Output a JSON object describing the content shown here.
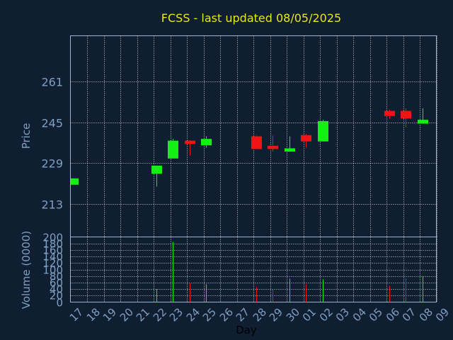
{
  "chart_data": {
    "type": "candlestick",
    "title": "FCSS - last updated 08/05/2025",
    "xlabel": "Day",
    "price_panel": {
      "ylabel": "Price",
      "y_ticks": [
        "261",
        "245",
        "229",
        "213"
      ],
      "ylim": [
        200,
        279
      ]
    },
    "volume_panel": {
      "ylabel": "Volume (0000)",
      "y_ticks": [
        "200",
        "180",
        "160",
        "140",
        "120",
        "100",
        "80",
        "60",
        "40",
        "20",
        "0"
      ],
      "ylim": [
        0,
        200
      ]
    },
    "x_ticks": [
      "17",
      "18",
      "19",
      "20",
      "21",
      "22",
      "23",
      "24",
      "25",
      "26",
      "27",
      "28",
      "29",
      "30",
      "01",
      "02",
      "03",
      "04",
      "05",
      "06",
      "07",
      "08",
      "09"
    ],
    "candles": [
      {
        "day": "17",
        "open": 220.5,
        "close": 223.0,
        "high": 223.0,
        "low": 220.5,
        "volume": 0
      },
      {
        "day": "22",
        "open": 224.8,
        "close": 228.0,
        "high": 228.0,
        "low": 219.8,
        "volume": 40
      },
      {
        "day": "23",
        "open": 230.8,
        "close": 237.8,
        "high": 238.5,
        "low": 230.8,
        "volume": 185
      },
      {
        "day": "24",
        "open": 237.8,
        "close": 236.5,
        "high": 238.0,
        "low": 232.0,
        "volume": 60
      },
      {
        "day": "25",
        "open": 236.0,
        "close": 238.5,
        "high": 239.5,
        "low": 235.0,
        "volume": 55
      },
      {
        "day": "28",
        "open": 239.5,
        "close": 234.5,
        "high": 239.8,
        "low": 234.5,
        "volume": 45
      },
      {
        "day": "29",
        "open": 235.8,
        "close": 234.5,
        "high": 239.8,
        "low": 233.5,
        "volume": 38
      },
      {
        "day": "30",
        "open": 233.5,
        "close": 234.8,
        "high": 239.5,
        "low": 233.5,
        "volume": 72
      },
      {
        "day": "01",
        "open": 240.0,
        "close": 237.5,
        "high": 240.5,
        "low": 235.0,
        "volume": 55
      },
      {
        "day": "02",
        "open": 237.5,
        "close": 245.5,
        "high": 246.0,
        "low": 237.5,
        "volume": 70
      },
      {
        "day": "06",
        "open": 249.5,
        "close": 247.5,
        "high": 250.0,
        "low": 246.5,
        "volume": 50
      },
      {
        "day": "07",
        "open": 249.5,
        "close": 246.5,
        "high": 250.5,
        "low": 243.0,
        "volume": 72
      },
      {
        "day": "08",
        "open": 244.5,
        "close": 246.0,
        "high": 250.5,
        "low": 244.5,
        "volume": 80
      }
    ],
    "colors": {
      "up": "#14f014",
      "down": "#f01414",
      "background": "#0f1e30",
      "grid": "#d0d0d0",
      "axis_text": "#7f9fc3",
      "title": "#e8e814"
    }
  }
}
